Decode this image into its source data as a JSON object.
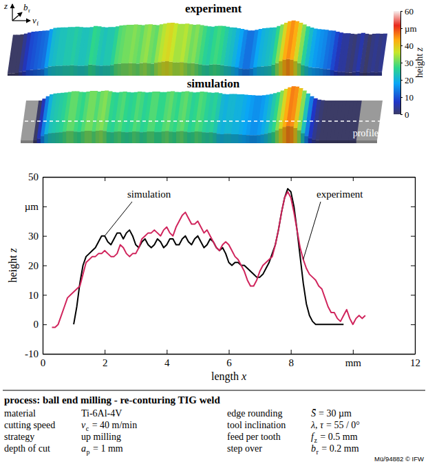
{
  "chart_data": {
    "type": "line",
    "xlabel": "length x",
    "ylabel": "height z",
    "xlim": [
      0,
      12
    ],
    "xticks": [
      0,
      2,
      4,
      6,
      8,
      {
        "value": 10,
        "label": "mm"
      },
      12
    ],
    "ylim": [
      -10,
      50
    ],
    "yticks": [
      -10,
      0,
      10,
      20,
      30,
      {
        "value": 40,
        "label": "µm"
      },
      50
    ],
    "x": [
      0.3,
      0.4,
      0.5,
      0.6,
      0.7,
      0.8,
      0.9,
      1.0,
      1.1,
      1.2,
      1.3,
      1.4,
      1.5,
      1.6,
      1.7,
      1.8,
      1.9,
      2.0,
      2.1,
      2.2,
      2.3,
      2.4,
      2.5,
      2.6,
      2.7,
      2.8,
      2.9,
      3.0,
      3.1,
      3.2,
      3.3,
      3.4,
      3.5,
      3.6,
      3.7,
      3.8,
      3.9,
      4.0,
      4.1,
      4.2,
      4.3,
      4.4,
      4.5,
      4.6,
      4.7,
      4.8,
      4.9,
      5.0,
      5.1,
      5.2,
      5.3,
      5.4,
      5.5,
      5.6,
      5.7,
      5.8,
      5.9,
      6.0,
      6.1,
      6.2,
      6.3,
      6.4,
      6.5,
      6.6,
      6.7,
      6.8,
      6.9,
      7.0,
      7.1,
      7.2,
      7.3,
      7.4,
      7.5,
      7.6,
      7.7,
      7.8,
      7.9,
      8.0,
      8.1,
      8.2,
      8.3,
      8.4,
      8.5,
      8.6,
      8.7,
      8.8,
      8.9,
      9.0,
      9.1,
      9.2,
      9.3,
      9.4,
      9.5,
      9.6,
      9.7,
      9.8,
      9.9,
      10.0,
      10.1,
      10.2,
      10.3,
      10.4
    ],
    "series": [
      {
        "name": "simulation",
        "color": "#000000",
        "values": [
          null,
          null,
          null,
          null,
          null,
          null,
          null,
          0,
          6,
          14,
          20,
          23,
          24,
          25,
          26,
          28,
          30,
          30,
          28,
          27,
          29,
          31,
          31,
          29,
          31,
          32,
          30,
          27,
          26,
          28,
          29,
          27,
          26,
          27,
          29,
          28,
          26,
          27,
          29,
          29,
          27,
          27,
          29,
          30,
          28,
          27,
          29,
          30,
          28,
          26,
          27,
          29,
          28,
          26,
          25,
          26,
          24,
          21,
          20,
          21,
          21,
          20,
          20,
          19,
          18,
          17,
          16,
          16,
          17,
          19,
          21,
          24,
          27,
          32,
          38,
          43,
          46,
          45,
          40,
          32,
          23,
          14,
          7,
          3,
          1,
          0,
          0,
          0,
          0,
          0,
          0,
          0,
          0,
          0,
          0,
          null,
          null,
          null,
          null,
          null,
          null,
          null
        ]
      },
      {
        "name": "experiment",
        "color": "#d0245c",
        "values": [
          -1,
          -1,
          0,
          3,
          6,
          9,
          10,
          11,
          12,
          13,
          17,
          21,
          22,
          23,
          23,
          24,
          24,
          25,
          24,
          23,
          23,
          24,
          27,
          26,
          24,
          23,
          24,
          24,
          26,
          29,
          30,
          31,
          31,
          32,
          31,
          30,
          32,
          33,
          31,
          30,
          33,
          35,
          37,
          38,
          36,
          34,
          34,
          35,
          33,
          31,
          32,
          30,
          28,
          26,
          25,
          27,
          28,
          27,
          25,
          23,
          22,
          20,
          18,
          15,
          13,
          13,
          15,
          18,
          20,
          21,
          22,
          23,
          27,
          32,
          38,
          43,
          45,
          43,
          38,
          32,
          26,
          22,
          19,
          17,
          16,
          15,
          13,
          12,
          9,
          6,
          4,
          4,
          2,
          1,
          3,
          5,
          2,
          0,
          2,
          3,
          2,
          3
        ]
      }
    ]
  },
  "surfaces": {
    "titles": [
      "experiment",
      "simulation"
    ],
    "profile_label": "profile",
    "colorbar": {
      "label": "height z",
      "range": [
        0,
        60
      ],
      "ticks": [
        0,
        10,
        20,
        30,
        40,
        {
          "value": 50,
          "label": "µm"
        },
        60
      ]
    }
  },
  "axes_icon": {
    "labels": [
      {
        "symbol": "z"
      },
      {
        "symbol": "b",
        "sub": "r"
      },
      {
        "symbol": "v",
        "sub": "f"
      }
    ]
  },
  "table": {
    "title": "process: ball end milling - re-conturing TIG weld",
    "rows": [
      {
        "left": {
          "label": "material",
          "value": "Ti-6Al-4V"
        },
        "right": {
          "label": "edge rounding",
          "symbol": "S̄",
          "value": "= 30 µm"
        }
      },
      {
        "left": {
          "label": "cutting speed",
          "symbol": "v",
          "sub": "c",
          "value": "= 40 m/min"
        },
        "right": {
          "label": "tool inclination",
          "symbol": "λ, τ",
          "value": "= 55 / 0°"
        }
      },
      {
        "left": {
          "label": "strategy",
          "value": "up milling"
        },
        "right": {
          "label": "feed per tooth",
          "symbol": "f",
          "sub": "z",
          "value": "= 0.5 mm"
        }
      },
      {
        "left": {
          "label": "depth of cut",
          "symbol": "a",
          "sub": "p",
          "value": "= 1 mm"
        },
        "right": {
          "label": "step over",
          "symbol": "b",
          "sub": "r",
          "value": "= 0.2 mm"
        }
      }
    ]
  },
  "footer": "Mü/94882 © IFW"
}
